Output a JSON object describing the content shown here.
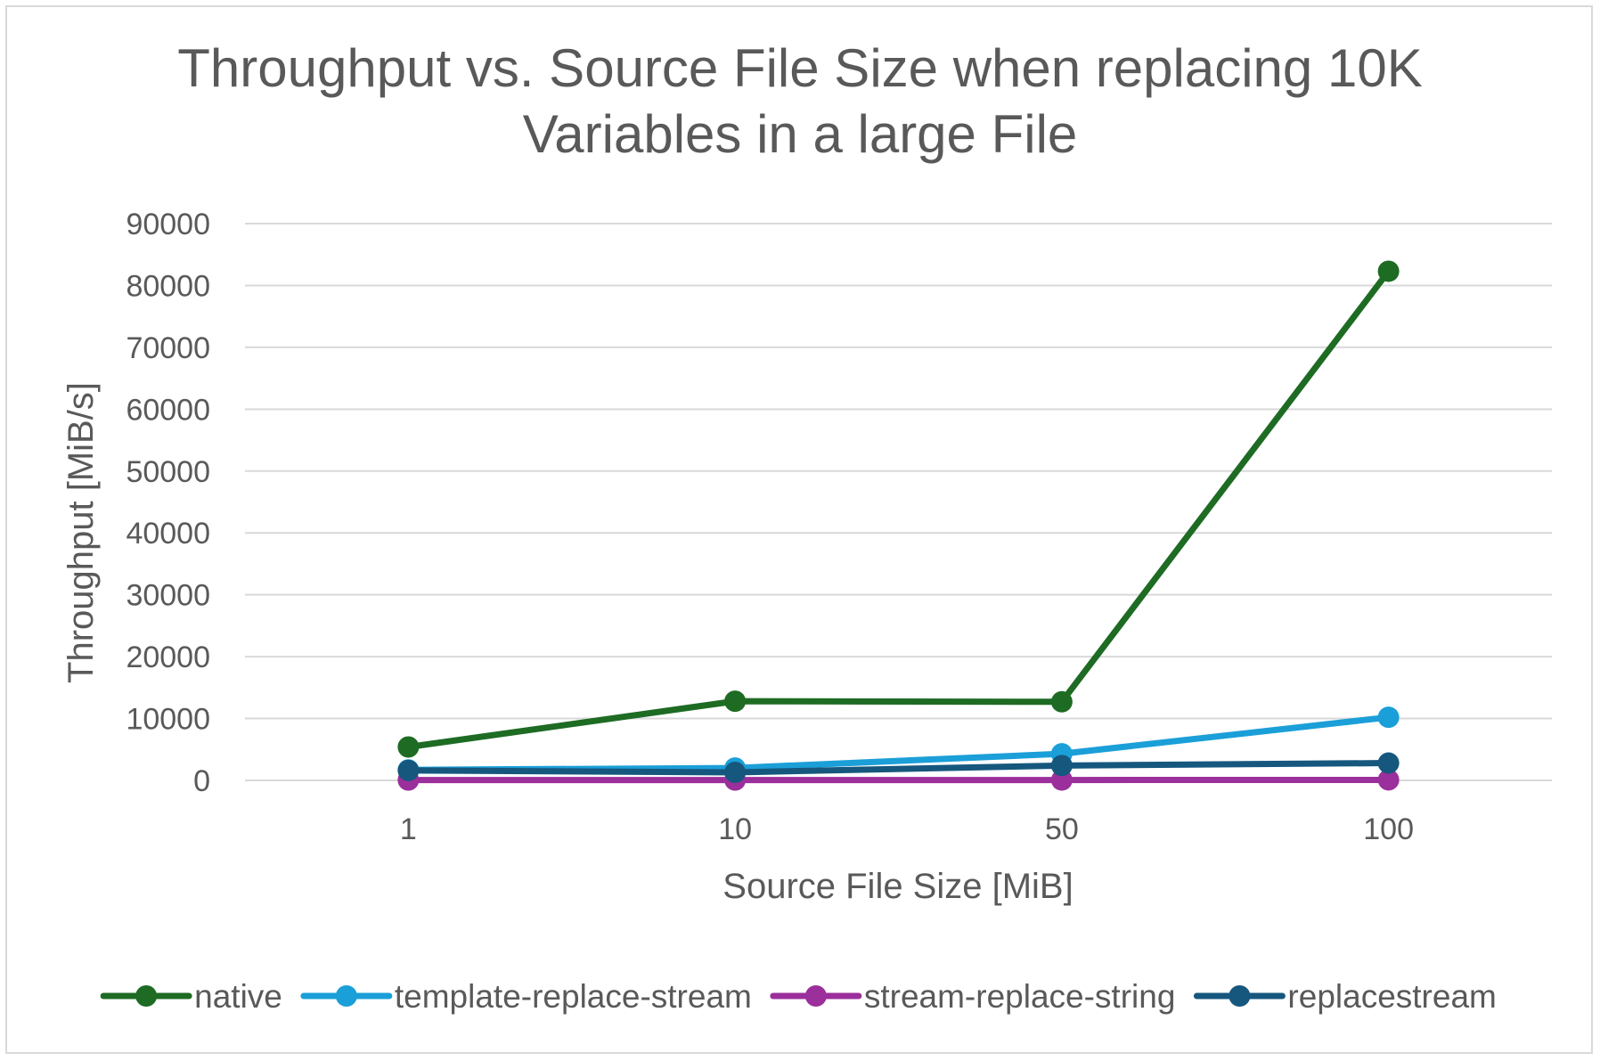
{
  "chart_data": {
    "type": "line",
    "title_lines": [
      "Throughput vs. Source File Size when replacing 10K",
      "Variables in a large File"
    ],
    "xlabel": "Source File Size [MiB]",
    "ylabel": "Throughput [MiB/s]",
    "categories": [
      "1",
      "10",
      "50",
      "100"
    ],
    "ylim": [
      0,
      90000
    ],
    "yticks": [
      "0",
      "10000",
      "20000",
      "30000",
      "40000",
      "50000",
      "60000",
      "70000",
      "80000",
      "90000"
    ],
    "grid": true,
    "legend_position": "bottom",
    "series": [
      {
        "name": "native",
        "color": "#1e6b23",
        "values": [
          5400,
          12800,
          12700,
          82300
        ]
      },
      {
        "name": "template-replace-stream",
        "color": "#1b9fd8",
        "values": [
          1700,
          2000,
          4300,
          10200
        ]
      },
      {
        "name": "stream-replace-string",
        "color": "#9b2f9b",
        "values": [
          50,
          50,
          60,
          80
        ]
      },
      {
        "name": "replacestream",
        "color": "#16577e",
        "values": [
          1600,
          1300,
          2400,
          2800
        ]
      }
    ]
  }
}
